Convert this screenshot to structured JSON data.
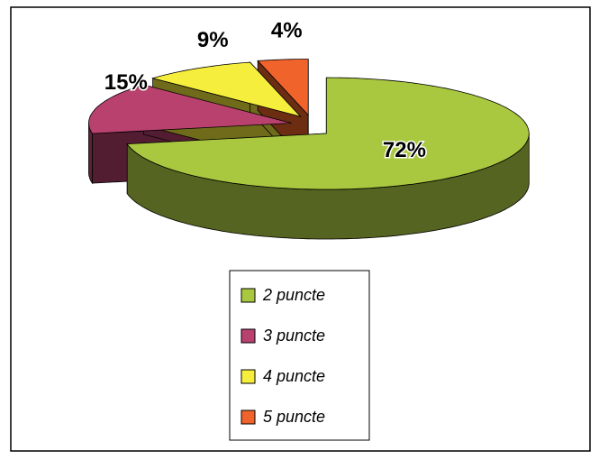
{
  "chart_data": {
    "type": "pie3d",
    "categories": [
      "2 puncte",
      "3 puncte",
      "4 puncte",
      "5 puncte"
    ],
    "values": [
      72,
      15,
      9,
      4
    ],
    "value_labels": [
      "72%",
      "15%",
      "9%",
      "4%"
    ],
    "colors": [
      "#a9c83f",
      "#b8416d",
      "#f6ee3c",
      "#f0632b"
    ],
    "legend": "bottom"
  }
}
